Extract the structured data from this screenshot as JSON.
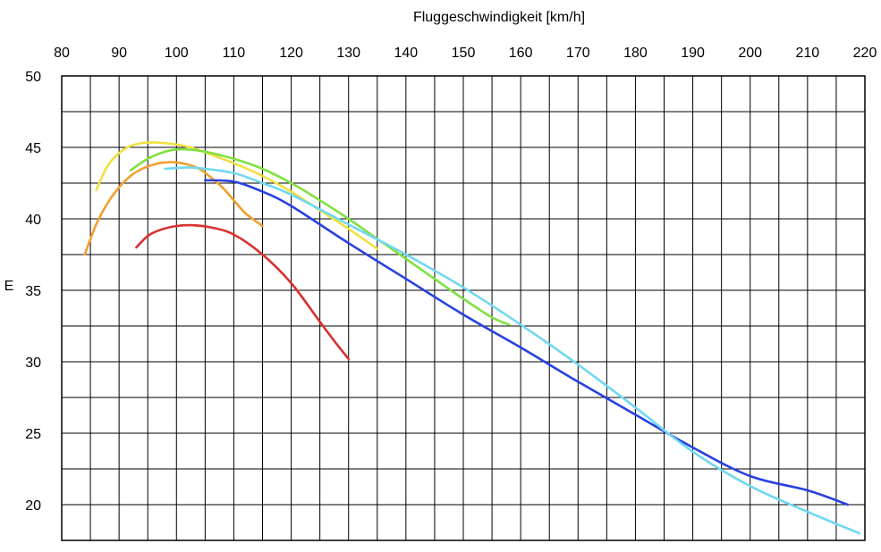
{
  "chart_data": {
    "type": "line",
    "title": "",
    "xlabel": "Fluggeschwindigkeit [km/h]",
    "ylabel": "E",
    "xlim": [
      80,
      220
    ],
    "ylim": [
      17.5,
      50
    ],
    "x_ticks": [
      80,
      90,
      100,
      110,
      120,
      130,
      140,
      150,
      160,
      170,
      180,
      190,
      200,
      210,
      220
    ],
    "x_tick_labels": [
      "80",
      "90",
      "100",
      "110",
      "120",
      "130",
      "140",
      "150",
      "160",
      "170",
      "180",
      "190",
      "200",
      "210",
      "220"
    ],
    "y_ticks": [
      20,
      25,
      30,
      35,
      40,
      45,
      50
    ],
    "y_tick_labels": [
      "20",
      "25",
      "30",
      "35",
      "40",
      "45",
      "50"
    ],
    "x_axis_position": "top",
    "grid": true,
    "legend": "none",
    "series": [
      {
        "color": "#f0e040",
        "x": [
          86,
          88,
          90,
          92,
          94,
          96,
          98,
          100,
          102,
          104,
          106,
          108,
          110,
          115,
          120,
          125,
          130,
          135
        ],
        "y": [
          42.0,
          43.7,
          44.6,
          45.1,
          45.3,
          45.35,
          45.3,
          45.2,
          45.05,
          44.8,
          44.5,
          44.2,
          43.9,
          43.0,
          41.9,
          40.6,
          39.3,
          37.9
        ]
      },
      {
        "color": "#f0a030",
        "x": [
          84,
          86,
          88,
          90,
          92,
          94,
          96,
          98,
          100,
          102,
          104,
          106,
          108,
          110,
          112,
          115
        ],
        "y": [
          37.5,
          39.6,
          41.1,
          42.2,
          43.0,
          43.5,
          43.8,
          43.95,
          43.95,
          43.8,
          43.5,
          42.9,
          42.2,
          41.3,
          40.4,
          39.5
        ]
      },
      {
        "color": "#80e040",
        "x": [
          92,
          95,
          98,
          100,
          102,
          105,
          110,
          115,
          120,
          125,
          130,
          135,
          140,
          145,
          150,
          155,
          158
        ],
        "y": [
          43.4,
          44.2,
          44.7,
          44.85,
          44.85,
          44.7,
          44.2,
          43.5,
          42.5,
          41.3,
          40.0,
          38.6,
          37.2,
          35.8,
          34.4,
          33.1,
          32.6
        ]
      },
      {
        "color": "#d83030",
        "x": [
          93,
          95,
          97,
          100,
          103,
          106,
          110,
          115,
          120,
          125,
          128,
          130
        ],
        "y": [
          38.0,
          38.8,
          39.2,
          39.5,
          39.55,
          39.4,
          38.9,
          37.5,
          35.5,
          32.8,
          31.2,
          30.2
        ]
      },
      {
        "color": "#2840e0",
        "x": [
          105,
          110,
          115,
          120,
          130,
          140,
          150,
          160,
          170,
          180,
          190,
          200,
          210,
          217
        ],
        "y": [
          42.7,
          42.6,
          41.9,
          40.9,
          38.3,
          35.8,
          33.3,
          31.0,
          28.6,
          26.3,
          24.0,
          22.0,
          21.0,
          20.0
        ]
      },
      {
        "color": "#70d8f0",
        "x": [
          98,
          102,
          105,
          110,
          115,
          120,
          130,
          140,
          150,
          160,
          170,
          180,
          190,
          200,
          210,
          219
        ],
        "y": [
          43.5,
          43.6,
          43.5,
          43.2,
          42.5,
          41.7,
          39.6,
          37.5,
          35.2,
          32.6,
          29.8,
          26.8,
          23.7,
          21.3,
          19.5,
          18.0
        ]
      }
    ]
  }
}
